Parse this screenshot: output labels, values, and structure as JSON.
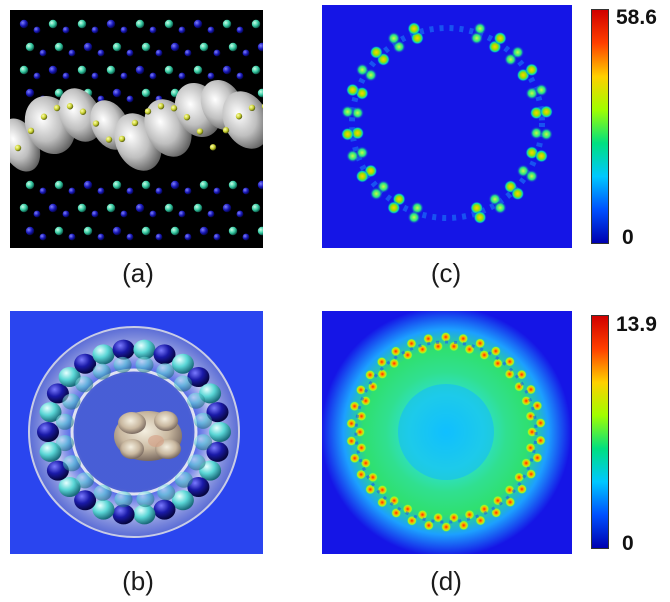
{
  "panels": {
    "a": {
      "caption": "(a)"
    },
    "b": {
      "caption": "(b)"
    },
    "c": {
      "caption": "(c)",
      "colorbar_max": "58.6",
      "colorbar_min": "0"
    },
    "d": {
      "caption": "(d)",
      "colorbar_max": "13.9",
      "colorbar_min": "0"
    }
  },
  "colors": {
    "map_background": "#1515e6",
    "panel_b_background": "#2a45ef",
    "panel_a_background": "#000000"
  }
}
